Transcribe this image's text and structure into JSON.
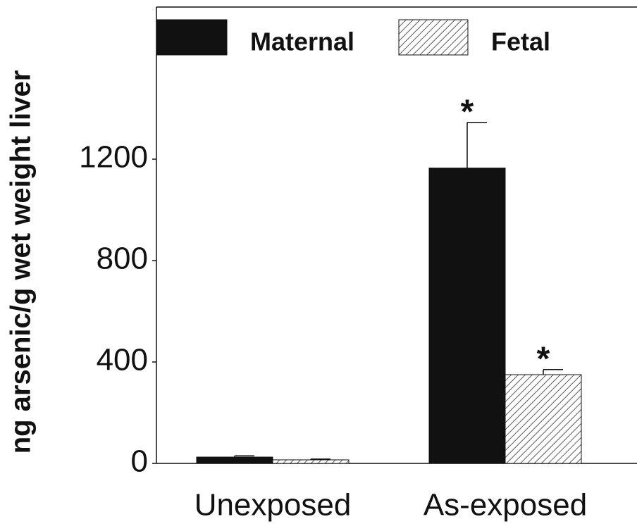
{
  "chart_data": {
    "type": "bar",
    "y_label": "ng arsenic/g wet weight liver",
    "categories": [
      "Unexposed",
      "As-exposed"
    ],
    "series": [
      {
        "name": "Maternal",
        "color": "#111111",
        "pattern": "solid",
        "values": [
          25,
          1165
        ],
        "errors": [
          5,
          180
        ],
        "annotations": [
          null,
          "*"
        ]
      },
      {
        "name": "Fetal",
        "color": "#333333",
        "pattern": "hatch",
        "values": [
          14,
          350
        ],
        "errors": [
          3,
          20
        ],
        "annotations": [
          null,
          "*"
        ]
      }
    ],
    "ylim": [
      0,
      1800
    ],
    "yticks": [
      0,
      400,
      800,
      1200
    ],
    "legend": "top-left"
  }
}
